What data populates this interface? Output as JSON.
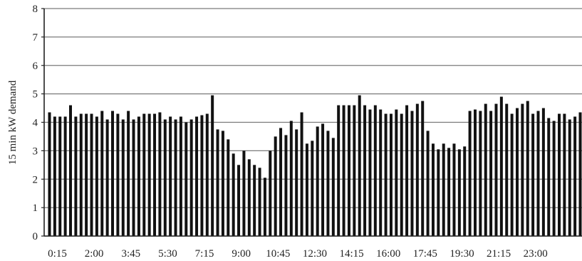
{
  "chart_data": {
    "type": "bar",
    "title": "",
    "xlabel": "",
    "ylabel": "15 min kW demand",
    "ylim": [
      0,
      8
    ],
    "yticks": [
      0,
      1,
      2,
      3,
      4,
      5,
      6,
      7,
      8
    ],
    "grid": true,
    "x_tick_labels": [
      "0:15",
      "2:00",
      "3:45",
      "5:30",
      "7:15",
      "9:00",
      "10:45",
      "12:30",
      "14:15",
      "16:00",
      "17:45",
      "19:30",
      "21:15",
      "23:00"
    ],
    "x_tick_every": 7,
    "values": [
      4.35,
      4.2,
      4.2,
      4.2,
      4.6,
      4.2,
      4.3,
      4.3,
      4.3,
      4.2,
      4.4,
      4.1,
      4.4,
      4.3,
      4.1,
      4.4,
      4.1,
      4.2,
      4.3,
      4.3,
      4.3,
      4.35,
      4.1,
      4.2,
      4.1,
      4.2,
      4.0,
      4.1,
      4.2,
      4.25,
      4.3,
      4.95,
      3.75,
      3.7,
      3.4,
      2.9,
      2.5,
      3.0,
      2.7,
      2.5,
      2.4,
      2.05,
      3.0,
      3.5,
      3.8,
      3.55,
      4.05,
      3.75,
      4.35,
      3.25,
      3.35,
      3.85,
      3.95,
      3.7,
      3.45,
      4.6,
      4.6,
      4.6,
      4.6,
      4.95,
      4.6,
      4.45,
      4.6,
      4.45,
      4.3,
      4.3,
      4.45,
      4.3,
      4.6,
      4.4,
      4.65,
      4.75,
      3.7,
      3.25,
      3.05,
      3.25,
      3.1,
      3.25,
      3.05,
      3.15,
      4.4,
      4.45,
      4.4,
      4.65,
      4.4,
      4.65,
      4.9,
      4.65,
      4.3,
      4.5,
      4.65,
      4.75,
      4.3,
      4.4,
      4.5,
      4.15,
      4.05,
      4.3,
      4.3,
      4.1,
      4.2,
      4.35
    ]
  }
}
